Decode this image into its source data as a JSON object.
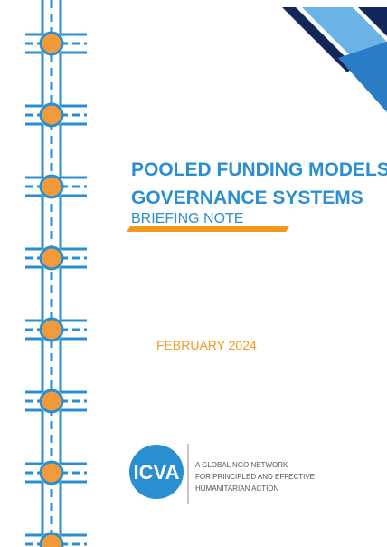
{
  "title_line1": "POOLED FUNDING MODELS:",
  "title_line2": "GOVERNANCE SYSTEMS",
  "subtitle": "BRIEFING NOTE",
  "date": "FEBRUARY 2024",
  "logo": {
    "text": "ICVA",
    "tagline": [
      "A GLOBAL NGO NETWORK",
      "FOR PRINCIPLED AND EFFECTIVE",
      "HUMANITARIAN ACTION"
    ]
  }
}
